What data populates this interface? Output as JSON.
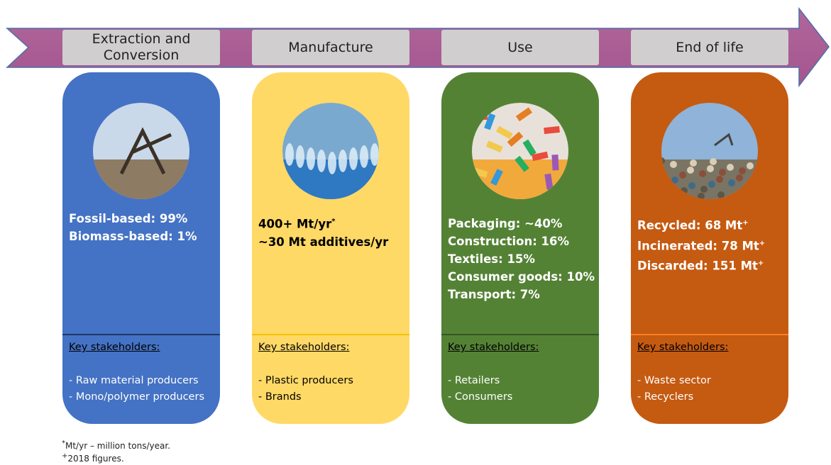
{
  "stages": [
    {
      "title": "Extraction and Conversion",
      "stats": [
        {
          "text": "Fossil-based: 99%"
        },
        {
          "text": "Biomass-based: 1%"
        }
      ],
      "stakeholders_label": "Key stakeholders:",
      "stakeholders": [
        "- Raw material producers",
        "- Mono/polymer producers"
      ]
    },
    {
      "title": "Manufacture",
      "stats": [
        {
          "text": "400+ Mt/yr",
          "sup": "*"
        },
        {
          "text": "~30 Mt additives/yr"
        }
      ],
      "stakeholders_label": "Key stakeholders:",
      "stakeholders": [
        "- Plastic producers",
        "- Brands"
      ]
    },
    {
      "title": "Use",
      "stats": [
        {
          "text": "Packaging: ~40%"
        },
        {
          "text": "Construction: 16%"
        },
        {
          "text": "Textiles: 15%"
        },
        {
          "text": "Consumer goods: 10%"
        },
        {
          "text": "Transport: 7%"
        }
      ],
      "stakeholders_label": "Key stakeholders:",
      "stakeholders": [
        "- Retailers",
        "- Consumers"
      ]
    },
    {
      "title": "End of life",
      "stats": [
        {
          "text": "Recycled: 68 Mt",
          "sup": "+"
        },
        {
          "text": "Incinerated: 78 Mt",
          "sup": "+"
        },
        {
          "text": "Discarded: 151 Mt",
          "sup": "+"
        }
      ],
      "stakeholders_label": "Key stakeholders:",
      "stakeholders": [
        "- Waste sector",
        "- Recyclers"
      ]
    }
  ],
  "footnotes": [
    {
      "sup": "*",
      "text": "Mt/yr – million tons/year."
    },
    {
      "sup": "+",
      "text": "2018 figures."
    }
  ]
}
